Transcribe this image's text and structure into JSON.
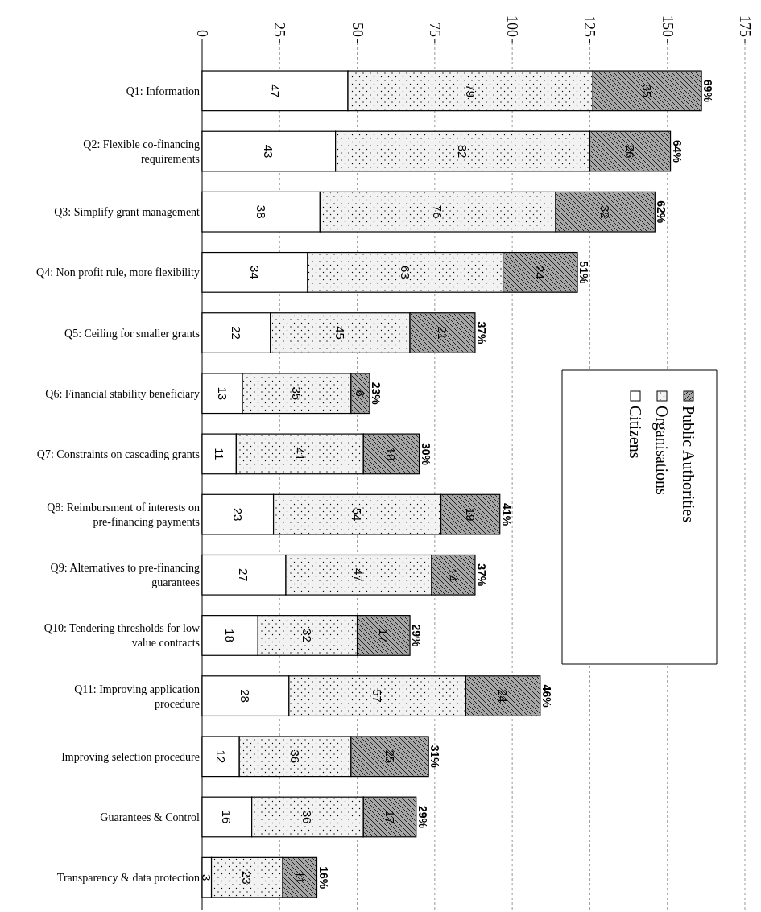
{
  "chart_data": {
    "type": "bar",
    "orientation": "horizontal",
    "stacked": true,
    "categories": [
      "Q1: Information",
      "Q2: Flexible co-financing requirements",
      "Q3: Simplify grant management",
      "Q4: Non profit rule, more flexibility",
      "Q5: Ceiling for smaller grants",
      "Q6: Financial stability beneficiary",
      "Q7: Constraints on cascading grants",
      "Q8: Reimbursment of interests on pre-financing payments",
      "Q9: Alternatives to pre-financing guarantees",
      "Q10: Tendering thresholds for low value contracts",
      "Q11: Improving application procedure",
      "Improving selection procedure",
      "Guarantees & Control",
      "Transparency & data protection"
    ],
    "series": [
      {
        "name": "Citizens",
        "color": "#ffffff",
        "values": [
          47,
          43,
          38,
          34,
          22,
          13,
          11,
          23,
          27,
          18,
          28,
          12,
          16,
          3
        ]
      },
      {
        "name": "Organisations",
        "color": "#f2f2f2",
        "values": [
          79,
          82,
          76,
          63,
          45,
          35,
          41,
          54,
          47,
          32,
          57,
          36,
          36,
          23
        ]
      },
      {
        "name": "Public Authorities",
        "color": "#a6a6a6",
        "values": [
          35,
          26,
          32,
          24,
          21,
          6,
          18,
          19,
          14,
          17,
          24,
          25,
          17,
          11
        ]
      }
    ],
    "annotations": [
      {
        "text": "69%",
        "x": 161,
        "y": "Q1: Information"
      },
      {
        "text": "64%",
        "x": 151,
        "y": "Q2: Flexible co-financing requirements"
      },
      {
        "text": "62%",
        "x": 146,
        "y": "Q3: Simplify grant management"
      },
      {
        "text": "51%",
        "x": 121,
        "y": "Q4: Non profit rule, more flexibility"
      },
      {
        "text": "37%",
        "x": 88,
        "y": "Q5: Ceiling for smaller grants"
      },
      {
        "text": "23%",
        "x": 54,
        "y": "Q6: Financial stability beneficiary"
      },
      {
        "text": "30%",
        "x": 70,
        "y": "Q7: Constraints on cascading grants"
      },
      {
        "text": "41%",
        "x": 96,
        "y": "Q8: Reimbursment of interests on pre-financing payments"
      },
      {
        "text": "37%",
        "x": 88,
        "y": "Q9: Alternatives to pre-financing guarantees"
      },
      {
        "text": "29%",
        "x": 67,
        "y": "Q10: Tendering thresholds for low value contracts"
      },
      {
        "text": "46%",
        "x": 109,
        "y": "Q11: Improving application procedure"
      },
      {
        "text": "31%",
        "x": 73,
        "y": "Improving selection procedure"
      },
      {
        "text": "29%",
        "x": 69,
        "y": "Guarantees & Control"
      },
      {
        "text": "16%",
        "x": 37,
        "y": "Transparency & data protection"
      }
    ],
    "xlim": [
      0,
      175
    ],
    "xticks": [
      0,
      25,
      50,
      75,
      100,
      125,
      150,
      175
    ],
    "data_labels": true,
    "grid": "x",
    "legend": "right"
  }
}
